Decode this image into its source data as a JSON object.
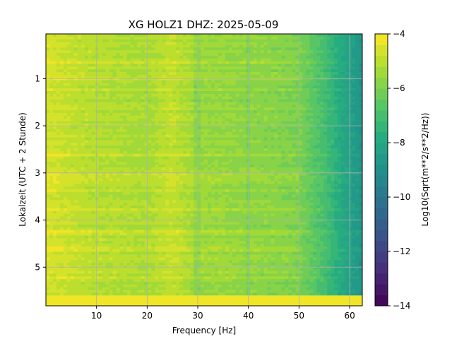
{
  "chart_data": {
    "type": "heatmap",
    "title": "XG HOLZ1  DHZ: 2025-05-09",
    "xlabel": "Frequency [Hz]",
    "ylabel": "Lokalzeit (UTC + 2 Stunde)",
    "colorbar_label": "Log10(Sqrt(m**2/s**2/Hz))",
    "xlim": [
      0,
      62.5
    ],
    "ylim": [
      5.82,
      0.05
    ],
    "y_inverted": true,
    "x_ticks": [
      10,
      20,
      30,
      40,
      50,
      60
    ],
    "x_tick_labels": [
      "10",
      "20",
      "30",
      "40",
      "50",
      "60"
    ],
    "y_ticks": [
      1,
      2,
      3,
      4,
      5
    ],
    "y_tick_labels": [
      "1",
      "2",
      "3",
      "4",
      "5"
    ],
    "colorbar_range": [
      -14,
      -4
    ],
    "colorbar_ticks": [
      -4,
      -6,
      -8,
      -10,
      -12,
      -14
    ],
    "colorbar_tick_labels": [
      "−4",
      "−6",
      "−8",
      "−10",
      "−12",
      "−14"
    ],
    "colormap": "viridis",
    "colorbar_levels": 25,
    "grid": true,
    "value_profile_by_frequency": {
      "frequency_hz": [
        0,
        5,
        10,
        15,
        20,
        25,
        30,
        35,
        40,
        45,
        50,
        52,
        55,
        58,
        60,
        62.5
      ],
      "log10_value": [
        -4.6,
        -4.9,
        -5.1,
        -5.2,
        -5.3,
        -4.9,
        -5.5,
        -5.6,
        -5.7,
        -5.8,
        -6.0,
        -6.4,
        -7.0,
        -7.8,
        -8.3,
        -8.8
      ]
    },
    "data_gap_band": {
      "time_from": 5.6,
      "time_to": 5.82,
      "value": -4
    }
  }
}
